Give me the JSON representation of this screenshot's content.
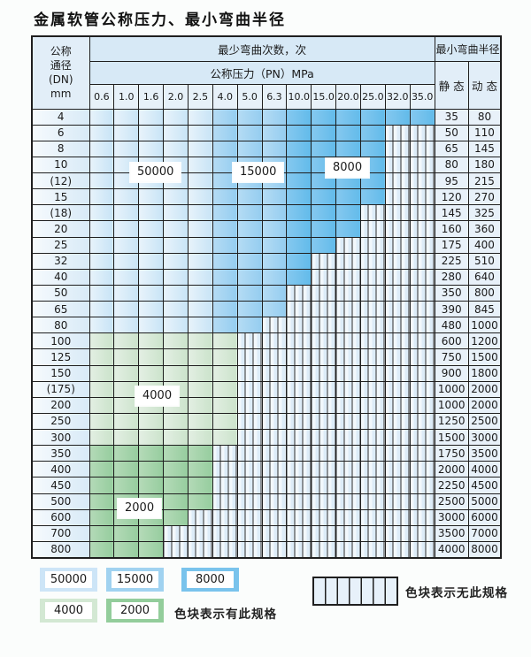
{
  "title": "金属软管公称压力、最小弯曲半径",
  "table": {
    "dn_header": [
      "公称",
      "通径",
      "(DN)",
      "mm"
    ],
    "cycles_header": "最少弯曲次数，次",
    "pressure_header": "公称压力（PN）MPa",
    "pressures": [
      "0.6",
      "1.0",
      "1.6",
      "2.0",
      "2.5",
      "4.0",
      "5.0",
      "6.3",
      "10.0",
      "15.0",
      "20.0",
      "25.0",
      "32.0",
      "35.0"
    ],
    "radius_header": "最小弯曲半径",
    "static_label": "静 态",
    "dynamic_label": "动 态",
    "zone_by_column_blue": [
      "b1",
      "b1",
      "b1",
      "b1",
      "b1",
      "b2",
      "b2",
      "b2",
      "b3",
      "b3",
      "b3",
      "b3",
      "b3",
      "b3"
    ],
    "rows": [
      {
        "dn": "4",
        "zone": "blue",
        "colored": 14,
        "static": "35",
        "dynamic": "80"
      },
      {
        "dn": "6",
        "zone": "blue",
        "colored": 12,
        "static": "50",
        "dynamic": "110"
      },
      {
        "dn": "8",
        "zone": "blue",
        "colored": 12,
        "static": "65",
        "dynamic": "145"
      },
      {
        "dn": "10",
        "zone": "blue",
        "colored": 12,
        "static": "80",
        "dynamic": "180"
      },
      {
        "dn": "(12)",
        "zone": "blue",
        "colored": 12,
        "static": "95",
        "dynamic": "215"
      },
      {
        "dn": "15",
        "zone": "blue",
        "colored": 12,
        "static": "120",
        "dynamic": "270"
      },
      {
        "dn": "(18)",
        "zone": "blue",
        "colored": 11,
        "static": "145",
        "dynamic": "325"
      },
      {
        "dn": "20",
        "zone": "blue",
        "colored": 11,
        "static": "160",
        "dynamic": "360"
      },
      {
        "dn": "25",
        "zone": "blue",
        "colored": 10,
        "static": "175",
        "dynamic": "400"
      },
      {
        "dn": "32",
        "zone": "blue",
        "colored": 9,
        "static": "225",
        "dynamic": "510"
      },
      {
        "dn": "40",
        "zone": "blue",
        "colored": 9,
        "static": "280",
        "dynamic": "640"
      },
      {
        "dn": "50",
        "zone": "blue",
        "colored": 8,
        "static": "350",
        "dynamic": "800"
      },
      {
        "dn": "65",
        "zone": "blue",
        "colored": 8,
        "static": "390",
        "dynamic": "845"
      },
      {
        "dn": "80",
        "zone": "blue",
        "colored": 7,
        "static": "480",
        "dynamic": "1000"
      },
      {
        "dn": "100",
        "zone": "green1",
        "colored": 6,
        "static": "600",
        "dynamic": "1200"
      },
      {
        "dn": "125",
        "zone": "green1",
        "colored": 6,
        "static": "750",
        "dynamic": "1500"
      },
      {
        "dn": "150",
        "zone": "green1",
        "colored": 6,
        "static": "900",
        "dynamic": "1800"
      },
      {
        "dn": "(175)",
        "zone": "green1",
        "colored": 6,
        "static": "1000",
        "dynamic": "2000"
      },
      {
        "dn": "200",
        "zone": "green1",
        "colored": 6,
        "static": "1000",
        "dynamic": "2000"
      },
      {
        "dn": "250",
        "zone": "green1",
        "colored": 6,
        "static": "1250",
        "dynamic": "2500"
      },
      {
        "dn": "300",
        "zone": "green1",
        "colored": 6,
        "static": "1500",
        "dynamic": "3000"
      },
      {
        "dn": "350",
        "zone": "green2",
        "colored": 5,
        "static": "1750",
        "dynamic": "3500"
      },
      {
        "dn": "400",
        "zone": "green2",
        "colored": 5,
        "static": "2000",
        "dynamic": "4000"
      },
      {
        "dn": "450",
        "zone": "green2",
        "colored": 5,
        "static": "2250",
        "dynamic": "4500"
      },
      {
        "dn": "500",
        "zone": "green2",
        "colored": 5,
        "static": "2500",
        "dynamic": "5000"
      },
      {
        "dn": "600",
        "zone": "green2",
        "colored": 4,
        "static": "3000",
        "dynamic": "6000"
      },
      {
        "dn": "700",
        "zone": "green2",
        "colored": 3,
        "static": "3500",
        "dynamic": "7000"
      },
      {
        "dn": "800",
        "zone": "green2",
        "colored": 3,
        "static": "4000",
        "dynamic": "8000"
      }
    ]
  },
  "overlay_labels": [
    {
      "id": "label-50000",
      "text": "50000"
    },
    {
      "id": "label-15000",
      "text": "15000"
    },
    {
      "id": "label-8000",
      "text": "8000"
    },
    {
      "id": "label-4000",
      "text": "4000"
    },
    {
      "id": "label-2000",
      "text": "2000"
    }
  ],
  "legend": {
    "items": [
      {
        "text": "50000",
        "zone": "b1"
      },
      {
        "text": "15000",
        "zone": "b2"
      },
      {
        "text": "8000",
        "zone": "b3"
      },
      {
        "text": "4000",
        "zone": "g1"
      },
      {
        "text": "2000",
        "zone": "g2"
      }
    ],
    "has_spec_text": "色块表示有此规格",
    "no_spec_text": "色块表示无此规格"
  },
  "colors": {
    "zone_50000": "#cde5f7",
    "zone_15000": "#a0d2f0",
    "zone_8000": "#79c3ec",
    "zone_4000": "#d3e8d3",
    "zone_2000": "#93cd9b",
    "grid_line": "#1f1f1f",
    "header_bg": "#d7e9f6"
  }
}
